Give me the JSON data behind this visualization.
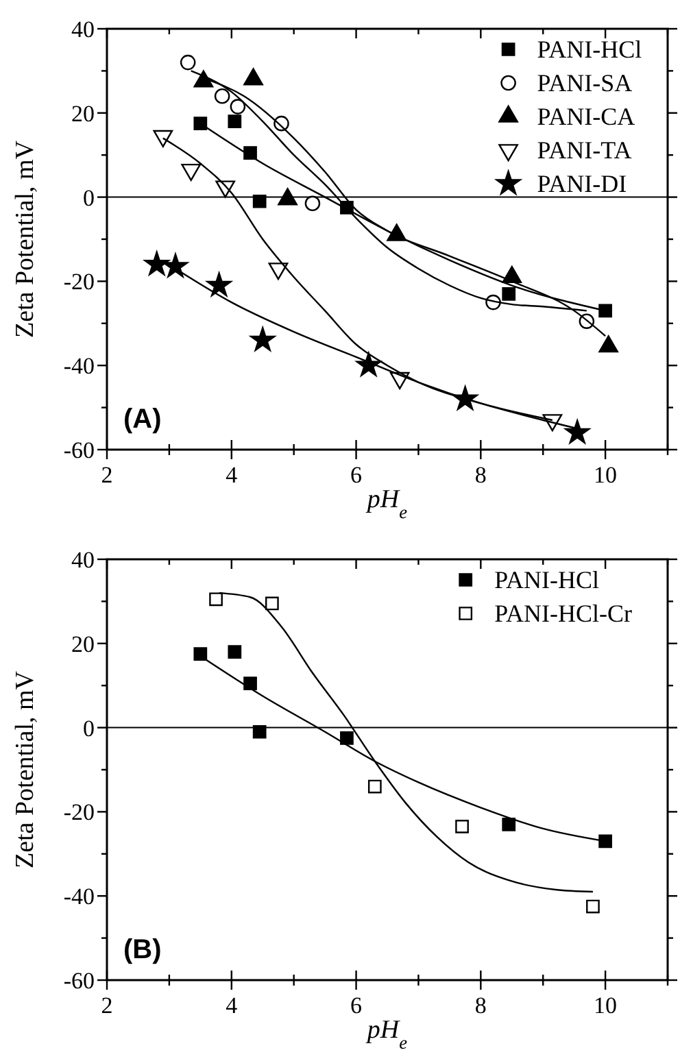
{
  "chart_data": [
    {
      "type": "scatter",
      "xlabel": "pH$_{e}$",
      "ylabel": "Zeta Potential, mV",
      "annotations": [
        "(A)"
      ],
      "xlim": [
        2,
        11
      ],
      "xticks": [
        2,
        {
          "value": 3,
          "label": null
        },
        4,
        {
          "value": 5,
          "label": null
        },
        6,
        {
          "value": 7,
          "label": null
        },
        8,
        {
          "value": 9,
          "label": null
        },
        10,
        {
          "value": 11,
          "label": null
        }
      ],
      "ylim": [
        -60,
        40
      ],
      "yticks": [
        -60,
        {
          "value": -50,
          "label": null
        },
        -40,
        {
          "value": -30,
          "label": null
        },
        -20,
        {
          "value": -10,
          "label": null
        },
        0,
        {
          "value": 10,
          "label": null
        },
        20,
        {
          "value": 30,
          "label": null
        },
        40
      ],
      "grid": false,
      "legend": "top right",
      "ref_lines": [
        {
          "axis": "y",
          "value": 0,
          "color": "#000000"
        }
      ],
      "series": [
        {
          "type": "scatter",
          "name": "PANI-HCl",
          "color": "#000000",
          "marker": "square",
          "x": [
            3.5,
            4.05,
            4.3,
            4.45,
            5.85,
            8.45,
            10
          ],
          "values": [
            17.5,
            18,
            10.5,
            -1,
            -2.5,
            -23,
            -27
          ]
        },
        {
          "type": "scatter",
          "name": "PANI-SA",
          "color": "#000000",
          "marker": "circle-open",
          "x": [
            3.3,
            3.85,
            4.1,
            4.8,
            5.3,
            8.2,
            9.7
          ],
          "values": [
            32,
            24,
            21.5,
            17.5,
            -1.5,
            -25,
            -29.5
          ]
        },
        {
          "type": "scatter",
          "name": "PANI-CA",
          "color": "#000000",
          "marker": "triangle",
          "x": [
            3.55,
            4.35,
            4.9,
            6.65,
            8.5,
            10.05
          ],
          "values": [
            27.5,
            28,
            -0.5,
            -9,
            -19,
            -35.5
          ]
        },
        {
          "type": "scatter",
          "name": "PANI-TA",
          "color": "#000000",
          "marker": "triangle-down-open",
          "x": [
            2.9,
            3.35,
            3.9,
            4.75,
            6.7,
            9.15
          ],
          "values": [
            14.5,
            6.5,
            2.5,
            -17,
            -43,
            -53
          ]
        },
        {
          "type": "scatter",
          "name": "PANI-DI",
          "color": "#000000",
          "marker": "star",
          "x": [
            2.8,
            3.1,
            3.8,
            4.5,
            6.2,
            7.75,
            9.55
          ],
          "values": [
            -16,
            -16.5,
            -21,
            -34,
            -40,
            -48,
            -56
          ]
        },
        {
          "type": "line",
          "color": "#000000",
          "marker": "none",
          "x": [
            3.55,
            4.5,
            5.5,
            6.5,
            7.5,
            8.5,
            10
          ],
          "values": [
            17,
            8,
            0,
            -8,
            -15,
            -21,
            -27
          ]
        },
        {
          "type": "line",
          "color": "#000000",
          "marker": "none",
          "x": [
            3.35,
            4,
            4.5,
            5,
            5.5,
            6,
            6.5,
            7,
            7.5,
            8,
            8.5,
            9,
            9.7
          ],
          "values": [
            30,
            25,
            18,
            10,
            3,
            -5,
            -12,
            -17,
            -21,
            -24,
            -25.5,
            -26,
            -27
          ]
        },
        {
          "type": "line",
          "color": "#000000",
          "marker": "none",
          "x": [
            3.6,
            4.2,
            5,
            5.5,
            6,
            6.5,
            7.5,
            8.5,
            9.5,
            10
          ],
          "values": [
            28,
            24,
            14,
            6,
            -3,
            -8,
            -14,
            -20,
            -27,
            -33
          ]
        },
        {
          "type": "line",
          "color": "#000000",
          "marker": "none",
          "x": [
            2.9,
            3.5,
            4,
            4.5,
            5,
            5.5,
            6,
            6.5,
            7,
            8,
            9.15
          ],
          "values": [
            14,
            8,
            1,
            -10,
            -19,
            -27,
            -35,
            -40,
            -44,
            -49,
            -53
          ]
        },
        {
          "type": "line",
          "color": "#000000",
          "marker": "none",
          "x": [
            3.1,
            4,
            5,
            6,
            7,
            8,
            9,
            9.55
          ],
          "values": [
            -17,
            -25,
            -32,
            -38,
            -44,
            -49,
            -53,
            -55
          ]
        }
      ]
    },
    {
      "type": "scatter",
      "xlabel": "pH$_{e}$",
      "ylabel": "Zeta Potential, mV",
      "annotations": [
        "(B)"
      ],
      "xlim": [
        2,
        11
      ],
      "xticks": [
        2,
        {
          "value": 3,
          "label": null
        },
        4,
        {
          "value": 5,
          "label": null
        },
        6,
        {
          "value": 7,
          "label": null
        },
        8,
        {
          "value": 9,
          "label": null
        },
        10,
        {
          "value": 11,
          "label": null
        }
      ],
      "ylim": [
        -60,
        40
      ],
      "yticks": [
        -60,
        {
          "value": -50,
          "label": null
        },
        -40,
        {
          "value": -30,
          "label": null
        },
        -20,
        {
          "value": -10,
          "label": null
        },
        0,
        {
          "value": 10,
          "label": null
        },
        20,
        {
          "value": 30,
          "label": null
        },
        40
      ],
      "grid": false,
      "legend": "top right",
      "ref_lines": [
        {
          "axis": "y",
          "value": 0,
          "color": "#000000"
        }
      ],
      "series": [
        {
          "type": "scatter",
          "name": "PANI-HCl",
          "color": "#000000",
          "marker": "square",
          "x": [
            3.5,
            4.05,
            4.3,
            4.45,
            5.85,
            8.45,
            10
          ],
          "values": [
            17.5,
            18,
            10.5,
            -1,
            -2.5,
            -23,
            -27
          ]
        },
        {
          "type": "scatter",
          "name": "PANI-HCl-Cr",
          "color": "#000000",
          "marker": "square-open",
          "x": [
            3.75,
            4.65,
            6.3,
            7.7,
            9.8
          ],
          "values": [
            30.5,
            29.5,
            -14,
            -23.5,
            -42.5
          ]
        },
        {
          "type": "line",
          "color": "#000000",
          "marker": "none",
          "x": [
            3.5,
            4.5,
            5.5,
            6.3,
            7,
            8,
            9,
            10
          ],
          "values": [
            17,
            7.5,
            -1,
            -8,
            -13,
            -19,
            -24,
            -27
          ]
        },
        {
          "type": "line",
          "color": "#000000",
          "marker": "none",
          "x": [
            3.8,
            4.3,
            4.8,
            5.3,
            5.8,
            6.3,
            6.8,
            7.3,
            7.8,
            8.5,
            9.2,
            9.8
          ],
          "values": [
            32,
            31,
            24,
            13,
            3,
            -8,
            -18,
            -26,
            -32,
            -36.5,
            -38.5,
            -39
          ]
        }
      ]
    }
  ]
}
